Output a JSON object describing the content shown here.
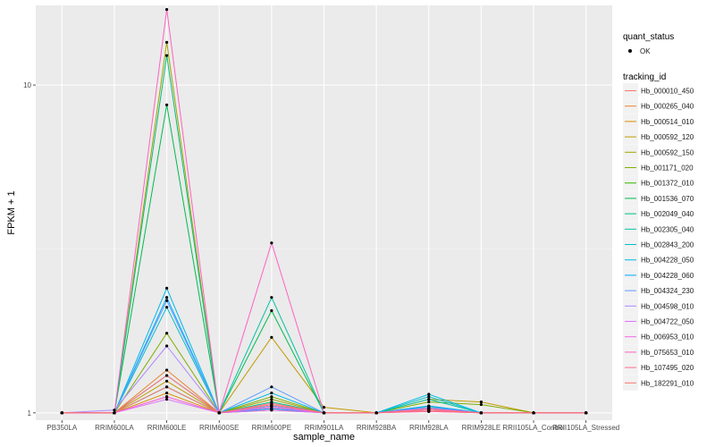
{
  "chart_data": {
    "type": "line",
    "title": "",
    "xlabel": "sample_name",
    "ylabel": "FPKM + 1",
    "y_scale": "log10",
    "ylim": [
      0.95,
      17.5
    ],
    "y_ticks": [
      1,
      10
    ],
    "y_tick_labels": [
      "1",
      "10"
    ],
    "categories": [
      "PB350LA",
      "RRIM600LA",
      "RRIM600LE",
      "RRIM600SE",
      "RRIM600PE",
      "RRIM901LA",
      "RRIM928BA",
      "RRIM928LA",
      "RRIM928LE",
      "RRII105LA_Control",
      "RRII105LA_Stressed"
    ],
    "point_legend": {
      "title": "quant_status",
      "label": "OK"
    },
    "legend_title": "tracking_id",
    "series": [
      {
        "name": "Hb_000010_450",
        "color": "#F8766D",
        "values": [
          1,
          1,
          1.12,
          1,
          1.03,
          1,
          1,
          1.03,
          1,
          1,
          1
        ]
      },
      {
        "name": "Hb_000265_040",
        "color": "#EA8331",
        "values": [
          1,
          1,
          1.35,
          1,
          1.05,
          1,
          1,
          1.02,
          1,
          1,
          1
        ]
      },
      {
        "name": "Hb_000514_010",
        "color": "#D89000",
        "values": [
          1,
          1,
          1.15,
          1,
          1.02,
          1,
          1,
          1.02,
          1,
          1,
          1
        ]
      },
      {
        "name": "Hb_000592_120",
        "color": "#C09B00",
        "values": [
          1,
          1,
          1.25,
          1,
          1.7,
          1.04,
          1,
          1.1,
          1.08,
          1,
          1
        ]
      },
      {
        "name": "Hb_000592_150",
        "color": "#A3A500",
        "values": [
          1,
          1,
          13.5,
          1,
          1.1,
          1,
          1,
          1.03,
          1,
          1,
          1
        ]
      },
      {
        "name": "Hb_001171_020",
        "color": "#7CAE00",
        "values": [
          1,
          1,
          1.75,
          1,
          1.12,
          1,
          1,
          1.08,
          1.06,
          1,
          1
        ]
      },
      {
        "name": "Hb_001372_010",
        "color": "#39B600",
        "values": [
          1,
          1,
          1.3,
          1,
          1.05,
          1,
          1,
          1.04,
          1,
          1,
          1
        ]
      },
      {
        "name": "Hb_001536_070",
        "color": "#00BB4E",
        "values": [
          1,
          1,
          8.7,
          1,
          2.05,
          1,
          1,
          1.05,
          1,
          1,
          1
        ]
      },
      {
        "name": "Hb_002049_040",
        "color": "#00BF7D",
        "values": [
          1,
          1,
          12.3,
          1,
          1.08,
          1,
          1,
          1.03,
          1,
          1,
          1
        ]
      },
      {
        "name": "Hb_002305_040",
        "color": "#00C1A3",
        "values": [
          1,
          1,
          1.2,
          1,
          2.25,
          1,
          1,
          1.1,
          1,
          1,
          1
        ]
      },
      {
        "name": "Hb_002843_200",
        "color": "#00BFC4",
        "values": [
          1,
          1,
          2.1,
          1,
          1.05,
          1,
          1,
          1.12,
          1,
          1,
          1
        ]
      },
      {
        "name": "Hb_004228_050",
        "color": "#00B8E7",
        "values": [
          1,
          1,
          2.4,
          1,
          1.15,
          1,
          1,
          1.14,
          1,
          1,
          1
        ]
      },
      {
        "name": "Hb_004228_060",
        "color": "#00A9FF",
        "values": [
          1,
          1,
          2.25,
          1,
          1.03,
          1,
          1,
          1.05,
          1,
          1,
          1
        ]
      },
      {
        "name": "Hb_004324_230",
        "color": "#619CFF",
        "values": [
          1,
          1,
          2.2,
          1,
          1.2,
          1,
          1,
          1.04,
          1,
          1,
          1
        ]
      },
      {
        "name": "Hb_004598_010",
        "color": "#AE87FF",
        "values": [
          1,
          1.02,
          1.6,
          1,
          1.05,
          1,
          1,
          1.03,
          1,
          1,
          1
        ]
      },
      {
        "name": "Hb_004722_050",
        "color": "#DB72FB",
        "values": [
          1,
          1,
          1.1,
          1,
          1.02,
          1,
          1,
          1.01,
          1,
          1,
          1
        ]
      },
      {
        "name": "Hb_006953_010",
        "color": "#F564E3",
        "values": [
          1,
          1,
          1.12,
          1,
          1.04,
          1,
          1,
          1.02,
          1,
          1,
          1
        ]
      },
      {
        "name": "Hb_075653_010",
        "color": "#FF61C3",
        "values": [
          1,
          1,
          17,
          1,
          3.3,
          1,
          1,
          1.03,
          1,
          1,
          1
        ]
      },
      {
        "name": "Hb_107495_020",
        "color": "#FF6C91",
        "values": [
          1,
          1,
          1.3,
          1,
          1.07,
          1,
          1,
          1.01,
          1,
          1,
          1
        ]
      },
      {
        "name": "Hb_182291_010",
        "color": "#F8766D",
        "values": [
          1,
          1,
          1.2,
          1,
          1.06,
          1,
          1,
          1.02,
          1,
          1,
          1
        ]
      }
    ]
  }
}
